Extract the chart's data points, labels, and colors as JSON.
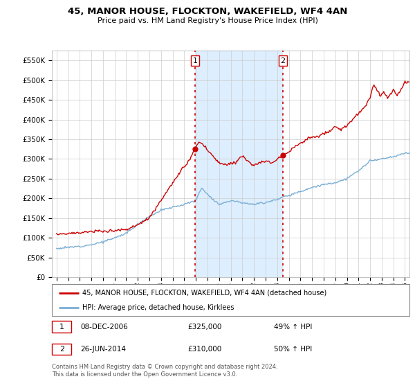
{
  "title": "45, MANOR HOUSE, FLOCKTON, WAKEFIELD, WF4 4AN",
  "subtitle": "Price paid vs. HM Land Registry's House Price Index (HPI)",
  "legend_label_red": "45, MANOR HOUSE, FLOCKTON, WAKEFIELD, WF4 4AN (detached house)",
  "legend_label_blue": "HPI: Average price, detached house, Kirklees",
  "transaction1": {
    "label": "1",
    "date": "08-DEC-2006",
    "price": "£325,000",
    "hpi": "49% ↑ HPI"
  },
  "transaction2": {
    "label": "2",
    "date": "26-JUN-2014",
    "price": "£310,000",
    "hpi": "50% ↑ HPI"
  },
  "footnote": "Contains HM Land Registry data © Crown copyright and database right 2024.\nThis data is licensed under the Open Government Licence v3.0.",
  "ylim": [
    0,
    575000
  ],
  "yticks": [
    0,
    50000,
    100000,
    150000,
    200000,
    250000,
    300000,
    350000,
    400000,
    450000,
    500000,
    550000
  ],
  "red_color": "#cc0000",
  "blue_color": "#7aaed4",
  "span_color": "#ddeeff",
  "vline1_x": 2006.92,
  "vline2_x": 2014.49,
  "marker1_x": 2006.92,
  "marker1_y": 325000,
  "marker2_x": 2014.49,
  "marker2_y": 310000,
  "xlim_left": 1994.6,
  "xlim_right": 2025.4
}
